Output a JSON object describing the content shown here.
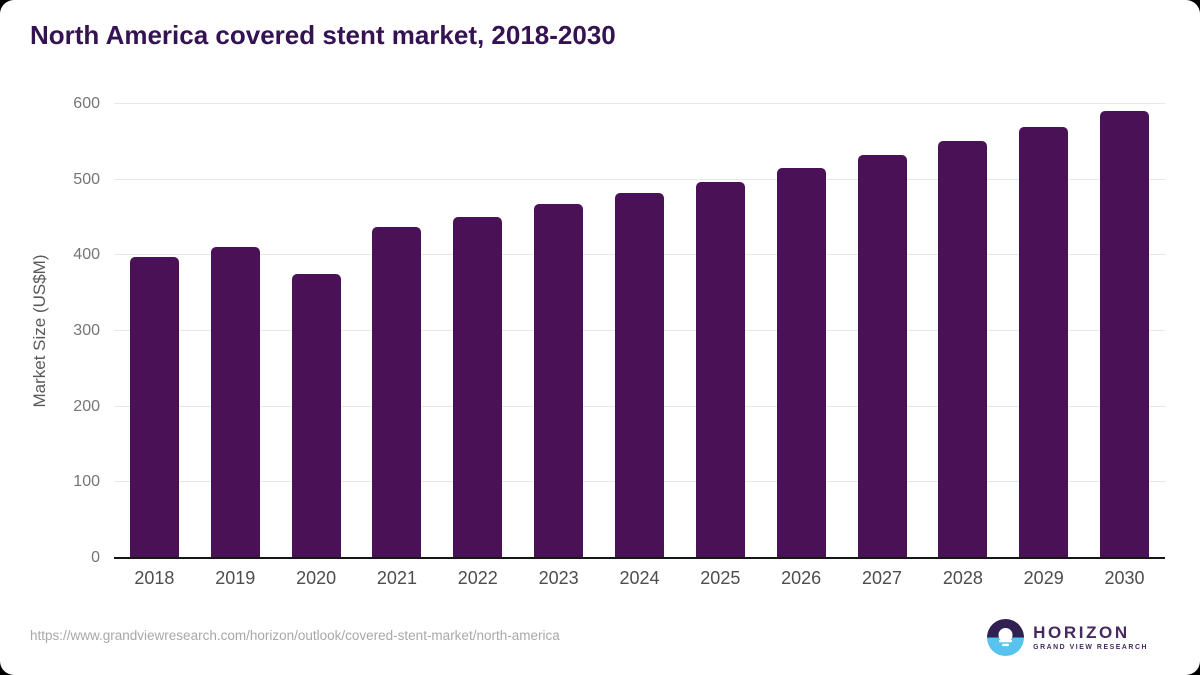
{
  "chart": {
    "title": "North America covered stent market, 2018-2030",
    "ylabel": "Market Size (US$M)"
  },
  "chart_data": {
    "type": "bar",
    "title": "North America covered stent market, 2018-2030",
    "categories": [
      "2018",
      "2019",
      "2020",
      "2021",
      "2022",
      "2023",
      "2024",
      "2025",
      "2026",
      "2027",
      "2028",
      "2029",
      "2030"
    ],
    "values": [
      398,
      411,
      375,
      438,
      451,
      468,
      482,
      497,
      515,
      532,
      551,
      570,
      591
    ],
    "xlabel": "",
    "ylabel": "Market Size (US$M)",
    "ylim": [
      0,
      600
    ],
    "yticks": [
      0,
      100,
      200,
      300,
      400,
      500,
      600
    ],
    "grid": "horizontal-light-gray",
    "legend": "none",
    "bar_color": "#4a1157",
    "axis_line_color": "#161616",
    "gridline_color": "#e8e8e8",
    "tick_label_color": "#757575"
  },
  "colors": {
    "title": "#351353",
    "logo_purple": "#46295f",
    "logo_dark_half": "#312052",
    "logo_blue_half": "#58c3ec"
  },
  "footer": {
    "url": "https://www.grandviewresearch.com/horizon/outlook/covered-stent-market/north-america",
    "logo": {
      "title": "HORIZON",
      "subtitle": "GRAND VIEW RESEARCH"
    }
  }
}
